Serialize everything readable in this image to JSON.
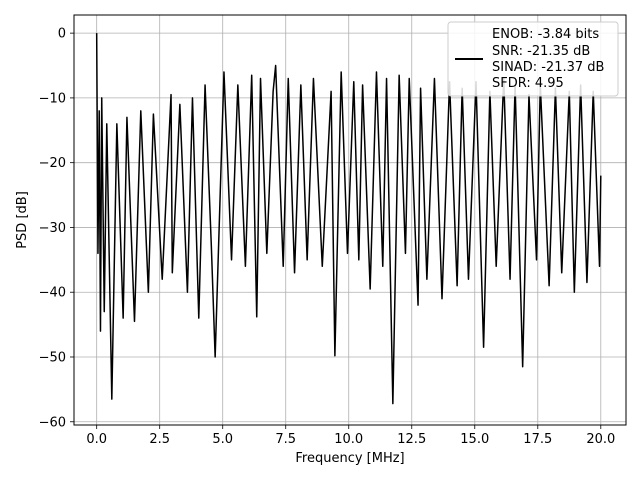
{
  "chart_data": {
    "type": "line",
    "xlabel": "Frequency [MHz]",
    "ylabel": "PSD [dB]",
    "xlim": [
      -0.9,
      21.0
    ],
    "ylim": [
      -60.5,
      2.8
    ],
    "xticks": [
      0.0,
      2.5,
      5.0,
      7.5,
      10.0,
      12.5,
      15.0,
      17.5,
      20.0
    ],
    "xtick_labels": [
      "0.0",
      "2.5",
      "5.0",
      "7.5",
      "10.0",
      "12.5",
      "15.0",
      "17.5",
      "20.0"
    ],
    "yticks": [
      0,
      -10,
      -20,
      -30,
      -40,
      -50,
      -60
    ],
    "ytick_labels": [
      "0",
      "−10",
      "−20",
      "−30",
      "−40",
      "−50",
      "−60"
    ],
    "grid": true,
    "legend": {
      "placement": "top-right",
      "lines": [
        "ENOB: -3.84 bits",
        "SNR: -21.35 dB",
        "SINAD: -21.37 dB",
        "SFDR: 4.95"
      ]
    },
    "series": [
      {
        "color": "#000000",
        "x": [
          0.0,
          0.05,
          0.1,
          0.15,
          0.2,
          0.3,
          0.4,
          0.6,
          0.8,
          1.05,
          1.2,
          1.5,
          1.75,
          2.05,
          2.25,
          2.6,
          2.95,
          3.0,
          3.3,
          3.6,
          3.8,
          4.05,
          4.3,
          4.55,
          4.7,
          5.05,
          5.35,
          5.6,
          5.9,
          6.15,
          6.35,
          6.5,
          6.75,
          7.0,
          7.1,
          7.4,
          7.6,
          7.85,
          8.1,
          8.35,
          8.6,
          8.95,
          9.3,
          9.45,
          9.7,
          9.95,
          10.2,
          10.4,
          10.55,
          10.85,
          11.1,
          11.35,
          11.5,
          11.75,
          12.0,
          12.25,
          12.4,
          12.75,
          12.85,
          13.1,
          13.4,
          13.7,
          14.0,
          14.3,
          14.5,
          14.75,
          15.05,
          15.35,
          15.6,
          15.85,
          16.15,
          16.4,
          16.6,
          16.9,
          17.15,
          17.45,
          17.6,
          17.95,
          18.2,
          18.45,
          18.75,
          18.95,
          19.2,
          19.45,
          19.7,
          19.95,
          20.0
        ],
        "y": [
          0.0,
          -34.0,
          -12.0,
          -46.0,
          -10.0,
          -43.0,
          -14.0,
          -56.5,
          -14.0,
          -44.0,
          -13.0,
          -44.5,
          -12.0,
          -40.0,
          -12.5,
          -38.0,
          -9.5,
          -37.0,
          -11.0,
          -40.0,
          -10.0,
          -44.0,
          -8.0,
          -33.0,
          -50.0,
          -6.0,
          -35.0,
          -8.0,
          -36.0,
          -6.5,
          -43.8,
          -7.0,
          -34.0,
          -9.0,
          -5.0,
          -36.0,
          -7.0,
          -37.0,
          -8.0,
          -35.0,
          -7.0,
          -36.0,
          -9.0,
          -49.8,
          -6.0,
          -34.0,
          -7.5,
          -35.0,
          -8.0,
          -39.5,
          -6.0,
          -36.0,
          -7.0,
          -57.2,
          -6.5,
          -34.0,
          -7.0,
          -42.0,
          -8.5,
          -38.0,
          -7.0,
          -41.0,
          -7.5,
          -39.0,
          -8.5,
          -38.0,
          -7.5,
          -48.5,
          -9.0,
          -36.0,
          -7.0,
          -38.0,
          -8.0,
          -51.5,
          -9.5,
          -35.0,
          -8.0,
          -39.0,
          -8.5,
          -37.0,
          -9.0,
          -40.0,
          -8.0,
          -38.5,
          -9.0,
          -36.0,
          -22.0
        ]
      }
    ]
  }
}
